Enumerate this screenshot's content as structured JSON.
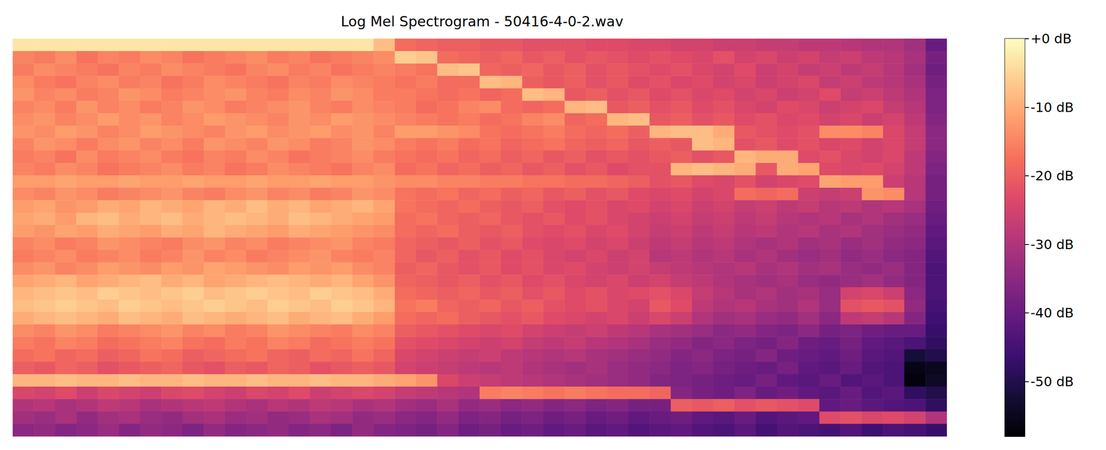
{
  "chart_data": {
    "type": "heatmap",
    "title": "Log Mel Spectrogram - 50416-4-0-2.wav",
    "tick_labels": false,
    "colorbar_range": [
      -58,
      0
    ],
    "colorbar_ticks": [
      {
        "value": 0,
        "label": "+0 dB"
      },
      {
        "value": -10,
        "label": "-10 dB"
      },
      {
        "value": -20,
        "label": "-20 dB"
      },
      {
        "value": -30,
        "label": "-30 dB"
      },
      {
        "value": -40,
        "label": "-40 dB"
      },
      {
        "value": -50,
        "label": "-50 dB"
      }
    ],
    "cells": [
      [
        -3,
        -3,
        -3,
        -3,
        -3,
        -3,
        -3,
        -3,
        -3,
        -3,
        -3,
        -3,
        -3,
        -3,
        -3,
        -3,
        -3,
        -8,
        -18,
        -19,
        -20,
        -20,
        -21,
        -21,
        -22,
        -22,
        -22,
        -23,
        -23,
        -24,
        -24,
        -25,
        -25,
        -26,
        -26,
        -27,
        -27,
        -28,
        -28,
        -29,
        -30,
        -30,
        -32,
        -40
      ],
      [
        -15,
        -16,
        -14,
        -17,
        -15,
        -16,
        -14,
        -15,
        -17,
        -16,
        -15,
        -14,
        -16,
        -15,
        -17,
        -16,
        -15,
        -14,
        -6,
        -7,
        -18,
        -19,
        -20,
        -19,
        -21,
        -20,
        -22,
        -21,
        -22,
        -23,
        -22,
        -23,
        -24,
        -22,
        -25,
        -24,
        -26,
        -25,
        -27,
        -26,
        -28,
        -29,
        -31,
        -38
      ],
      [
        -16,
        -14,
        -15,
        -16,
        -17,
        -15,
        -16,
        -14,
        -15,
        -16,
        -17,
        -15,
        -14,
        -16,
        -15,
        -17,
        -16,
        -15,
        -16,
        -17,
        -8,
        -7,
        -19,
        -20,
        -19,
        -21,
        -20,
        -22,
        -21,
        -22,
        -23,
        -22,
        -24,
        -25,
        -23,
        -26,
        -25,
        -27,
        -26,
        -28,
        -27,
        -29,
        -32,
        -39
      ],
      [
        -14,
        -16,
        -17,
        -15,
        -14,
        -16,
        -15,
        -17,
        -16,
        -14,
        -15,
        -16,
        -17,
        -15,
        -16,
        -14,
        -15,
        -16,
        -17,
        -16,
        -18,
        -18,
        -8,
        -9,
        -20,
        -21,
        -20,
        -22,
        -21,
        -23,
        -22,
        -24,
        -23,
        -25,
        -24,
        -26,
        -25,
        -24,
        -27,
        -26,
        -28,
        -29,
        -31,
        -38
      ],
      [
        -13,
        -15,
        -14,
        -16,
        -15,
        -13,
        -14,
        -16,
        -15,
        -14,
        -13,
        -15,
        -16,
        -14,
        -15,
        -13,
        -14,
        -16,
        -16,
        -17,
        -18,
        -17,
        -19,
        -18,
        -8,
        -9,
        -21,
        -20,
        -22,
        -21,
        -23,
        -22,
        -24,
        -23,
        -25,
        -24,
        -26,
        -25,
        -23,
        -27,
        -26,
        -28,
        -30,
        -37
      ],
      [
        -15,
        -14,
        -16,
        -13,
        -15,
        -14,
        -16,
        -15,
        -13,
        -14,
        -16,
        -15,
        -14,
        -13,
        -15,
        -16,
        -14,
        -15,
        -16,
        -18,
        -17,
        -15,
        -14,
        -18,
        -19,
        -18,
        -9,
        -8,
        -21,
        -20,
        -22,
        -21,
        -23,
        -22,
        -24,
        -25,
        -23,
        -24,
        -26,
        -25,
        -24,
        -27,
        -29,
        -37
      ],
      [
        -14,
        -13,
        -15,
        -14,
        -12,
        -14,
        -13,
        -15,
        -14,
        -12,
        -13,
        -14,
        -15,
        -13,
        -14,
        -12,
        -13,
        -14,
        -15,
        -16,
        -17,
        -16,
        -18,
        -17,
        -15,
        -14,
        -19,
        -18,
        -9,
        -8,
        -21,
        -20,
        -22,
        -21,
        -23,
        -22,
        -24,
        -23,
        -25,
        -24,
        -26,
        -25,
        -28,
        -36
      ],
      [
        -13,
        -14,
        -12,
        -13,
        -15,
        -14,
        -12,
        -13,
        -14,
        -15,
        -13,
        -12,
        -14,
        -13,
        -12,
        -14,
        -13,
        -15,
        -12,
        -12,
        -13,
        -14,
        -17,
        -18,
        -17,
        -16,
        -18,
        -19,
        -18,
        -20,
        -9,
        -8,
        -8,
        -10,
        -21,
        -22,
        -23,
        -22,
        -14,
        -14,
        -15,
        -24,
        -27,
        -35
      ],
      [
        -15,
        -13,
        -14,
        -16,
        -14,
        -13,
        -15,
        -14,
        -16,
        -13,
        -14,
        -15,
        -13,
        -14,
        -16,
        -15,
        -13,
        -14,
        -16,
        -17,
        -16,
        -18,
        -17,
        -19,
        -18,
        -17,
        -19,
        -20,
        -19,
        -21,
        -20,
        -21,
        -8,
        -9,
        -22,
        -21,
        -23,
        -22,
        -24,
        -23,
        -25,
        -24,
        -27,
        -35
      ],
      [
        -16,
        -15,
        -17,
        -14,
        -16,
        -15,
        -14,
        -16,
        -17,
        -15,
        -16,
        -14,
        -15,
        -17,
        -16,
        -15,
        -14,
        -16,
        -17,
        -18,
        -17,
        -19,
        -18,
        -20,
        -19,
        -21,
        -20,
        -22,
        -21,
        -22,
        -21,
        -20,
        -22,
        -21,
        -9,
        -10,
        -10,
        -23,
        -22,
        -24,
        -25,
        -24,
        -28,
        -36
      ],
      [
        -15,
        -16,
        -14,
        -15,
        -17,
        -16,
        -15,
        -14,
        -16,
        -15,
        -17,
        -16,
        -14,
        -15,
        -16,
        -17,
        -15,
        -14,
        -18,
        -17,
        -19,
        -18,
        -20,
        -19,
        -21,
        -20,
        -22,
        -21,
        -23,
        -22,
        -22,
        -9,
        -8,
        -9,
        -10,
        -21,
        -10,
        -11,
        -23,
        -24,
        -23,
        -25,
        -28,
        -37
      ],
      [
        -12,
        -12,
        -11,
        -12,
        -12,
        -11,
        -12,
        -12,
        -11,
        -12,
        -12,
        -11,
        -12,
        -12,
        -11,
        -12,
        -12,
        -13,
        -14,
        -14,
        -15,
        -15,
        -16,
        -16,
        -17,
        -17,
        -18,
        -18,
        -19,
        -20,
        -22,
        -21,
        -23,
        -24,
        -22,
        -25,
        -24,
        -23,
        -11,
        -12,
        -12,
        -26,
        -29,
        -38
      ],
      [
        -14,
        -15,
        -13,
        -14,
        -16,
        -15,
        -14,
        -13,
        -15,
        -16,
        -14,
        -13,
        -15,
        -14,
        -16,
        -15,
        -13,
        -14,
        -17,
        -18,
        -17,
        -19,
        -18,
        -20,
        -19,
        -21,
        -20,
        -22,
        -21,
        -23,
        -24,
        -23,
        -25,
        -24,
        -18,
        -19,
        -18,
        -26,
        -27,
        -26,
        -13,
        -14,
        -29,
        -38
      ],
      [
        -12,
        -11,
        -13,
        -12,
        -10,
        -11,
        -9,
        -10,
        -11,
        -9,
        -10,
        -8,
        -10,
        -9,
        -11,
        -10,
        -9,
        -11,
        -17,
        -18,
        -19,
        -18,
        -20,
        -21,
        -20,
        -22,
        -23,
        -22,
        -24,
        -23,
        -25,
        -24,
        -26,
        -25,
        -27,
        -26,
        -28,
        -27,
        -29,
        -28,
        -30,
        -29,
        -31,
        -39
      ],
      [
        -11,
        -10,
        -12,
        -9,
        -8,
        -10,
        -9,
        -8,
        -10,
        -9,
        -8,
        -9,
        -10,
        -8,
        -9,
        -10,
        -11,
        -12,
        -18,
        -17,
        -19,
        -20,
        -19,
        -21,
        -22,
        -21,
        -23,
        -22,
        -24,
        -25,
        -26,
        -25,
        -27,
        -26,
        -28,
        -27,
        -29,
        -30,
        -29,
        -31,
        -30,
        -32,
        -33,
        -40
      ],
      [
        -12,
        -13,
        -11,
        -12,
        -10,
        -11,
        -12,
        -10,
        -11,
        -9,
        -10,
        -11,
        -12,
        -10,
        -11,
        -12,
        -13,
        -14,
        -18,
        -19,
        -18,
        -20,
        -21,
        -20,
        -22,
        -23,
        -22,
        -24,
        -23,
        -25,
        -27,
        -26,
        -28,
        -27,
        -29,
        -28,
        -30,
        -29,
        -31,
        -30,
        -32,
        -33,
        -34,
        -41
      ],
      [
        -15,
        -14,
        -16,
        -15,
        -13,
        -14,
        -15,
        -16,
        -14,
        -13,
        -15,
        -14,
        -16,
        -15,
        -14,
        -13,
        -15,
        -16,
        -19,
        -20,
        -21,
        -20,
        -22,
        -21,
        -23,
        -24,
        -23,
        -25,
        -24,
        -26,
        -28,
        -27,
        -29,
        -28,
        -30,
        -31,
        -30,
        -32,
        -31,
        -33,
        -32,
        -34,
        -35,
        -42
      ],
      [
        -16,
        -15,
        -14,
        -16,
        -15,
        -14,
        -16,
        -15,
        -13,
        -15,
        -14,
        -16,
        -15,
        -14,
        -13,
        -15,
        -16,
        -15,
        -19,
        -21,
        -20,
        -22,
        -21,
        -23,
        -22,
        -24,
        -25,
        -24,
        -26,
        -25,
        -29,
        -28,
        -30,
        -29,
        -31,
        -30,
        -32,
        -33,
        -32,
        -34,
        -33,
        -35,
        -36,
        -43
      ],
      [
        -14,
        -13,
        -15,
        -14,
        -12,
        -13,
        -14,
        -12,
        -13,
        -11,
        -12,
        -13,
        -14,
        -12,
        -13,
        -12,
        -14,
        -15,
        -20,
        -19,
        -21,
        -22,
        -21,
        -23,
        -22,
        -24,
        -23,
        -25,
        -26,
        -25,
        -27,
        -28,
        -29,
        -30,
        -29,
        -31,
        -30,
        -32,
        -31,
        -33,
        -34,
        -33,
        -36,
        -44
      ],
      [
        -11,
        -10,
        -9,
        -11,
        -10,
        -9,
        -8,
        -10,
        -9,
        -11,
        -10,
        -9,
        -8,
        -9,
        -10,
        -9,
        -11,
        -13,
        -19,
        -20,
        -21,
        -20,
        -22,
        -21,
        -23,
        -22,
        -24,
        -25,
        -24,
        -26,
        -25,
        -27,
        -28,
        -30,
        -31,
        -32,
        -31,
        -33,
        -34,
        -33,
        -32,
        -34,
        -36,
        -44
      ],
      [
        -9,
        -8,
        -7,
        -8,
        -6,
        -7,
        -8,
        -7,
        -6,
        -8,
        -7,
        -6,
        -7,
        -8,
        -6,
        -7,
        -8,
        -10,
        -18,
        -19,
        -20,
        -19,
        -21,
        -20,
        -22,
        -21,
        -23,
        -22,
        -24,
        -23,
        -22,
        -24,
        -27,
        -29,
        -31,
        -30,
        -32,
        -31,
        -33,
        -25,
        -24,
        -26,
        -35,
        -44
      ],
      [
        -8,
        -7,
        -6,
        -7,
        -8,
        -6,
        -7,
        -8,
        -7,
        -6,
        -7,
        -8,
        -6,
        -7,
        -8,
        -6,
        -7,
        -9,
        -17,
        -16,
        -19,
        -20,
        -19,
        -21,
        -20,
        -22,
        -23,
        -22,
        -24,
        -25,
        -21,
        -23,
        -28,
        -30,
        -29,
        -31,
        -32,
        -30,
        -33,
        -22,
        -21,
        -22,
        -34,
        -45
      ],
      [
        -10,
        -9,
        -8,
        -9,
        -10,
        -8,
        -9,
        -10,
        -8,
        -9,
        -10,
        -9,
        -8,
        -10,
        -9,
        -8,
        -10,
        -12,
        -18,
        -19,
        -18,
        -20,
        -21,
        -22,
        -21,
        -23,
        -24,
        -25,
        -24,
        -26,
        -24,
        -26,
        -30,
        -32,
        -31,
        -33,
        -34,
        -32,
        -35,
        -28,
        -27,
        -29,
        -36,
        -46
      ],
      [
        -14,
        -15,
        -13,
        -14,
        -16,
        -15,
        -14,
        -13,
        -15,
        -14,
        -16,
        -15,
        -13,
        -14,
        -15,
        -16,
        -14,
        -15,
        -20,
        -21,
        -22,
        -23,
        -24,
        -23,
        -25,
        -26,
        -27,
        -26,
        -28,
        -29,
        -31,
        -32,
        -33,
        -35,
        -34,
        -36,
        -37,
        -35,
        -38,
        -37,
        -39,
        -40,
        -40,
        -47
      ],
      [
        -16,
        -17,
        -15,
        -16,
        -18,
        -17,
        -16,
        -15,
        -17,
        -18,
        -16,
        -17,
        -15,
        -16,
        -18,
        -17,
        -16,
        -17,
        -22,
        -23,
        -24,
        -25,
        -26,
        -25,
        -27,
        -28,
        -27,
        -29,
        -30,
        -31,
        -33,
        -34,
        -36,
        -35,
        -37,
        -38,
        -36,
        -39,
        -40,
        -38,
        -41,
        -42,
        -44,
        -48
      ],
      [
        -18,
        -17,
        -19,
        -18,
        -20,
        -19,
        -17,
        -18,
        -20,
        -19,
        -18,
        -17,
        -19,
        -20,
        -18,
        -19,
        -17,
        -19,
        -24,
        -25,
        -26,
        -27,
        -26,
        -28,
        -29,
        -30,
        -29,
        -31,
        -32,
        -33,
        -34,
        -36,
        -35,
        -37,
        -38,
        -36,
        -39,
        -40,
        -41,
        -39,
        -42,
        -43,
        -52,
        -50
      ],
      [
        -20,
        -21,
        -19,
        -20,
        -22,
        -21,
        -20,
        -19,
        -21,
        -22,
        -20,
        -21,
        -19,
        -20,
        -22,
        -21,
        -20,
        -21,
        -25,
        -26,
        -27,
        -28,
        -29,
        -28,
        -30,
        -31,
        -32,
        -31,
        -33,
        -34,
        -35,
        -37,
        -36,
        -38,
        -39,
        -40,
        -38,
        -41,
        -42,
        -40,
        -43,
        -44,
        -56,
        -55
      ],
      [
        -9,
        -9,
        -8,
        -9,
        -9,
        -8,
        -9,
        -9,
        -8,
        -9,
        -9,
        -8,
        -9,
        -9,
        -8,
        -9,
        -9,
        -10,
        -11,
        -13,
        -24,
        -26,
        -27,
        -28,
        -29,
        -30,
        -31,
        -32,
        -33,
        -34,
        -36,
        -37,
        -38,
        -39,
        -40,
        -38,
        -41,
        -42,
        -40,
        -43,
        -42,
        -44,
        -57,
        -54
      ],
      [
        -24,
        -25,
        -23,
        -26,
        -24,
        -25,
        -26,
        -24,
        -23,
        -25,
        -26,
        -24,
        -25,
        -23,
        -26,
        -25,
        -24,
        -25,
        -27,
        -28,
        -29,
        -30,
        -16,
        -15,
        -16,
        -17,
        -16,
        -17,
        -18,
        -18,
        -19,
        -36,
        -38,
        -39,
        -37,
        -40,
        -39,
        -41,
        -42,
        -40,
        -43,
        -42,
        -48,
        -50
      ],
      [
        -30,
        -29,
        -31,
        -30,
        -28,
        -29,
        -31,
        -30,
        -29,
        -28,
        -30,
        -31,
        -29,
        -30,
        -28,
        -29,
        -31,
        -30,
        -32,
        -33,
        -31,
        -34,
        -33,
        -35,
        -34,
        -36,
        -35,
        -37,
        -36,
        -38,
        -38,
        -20,
        -21,
        -20,
        -22,
        -21,
        -22,
        -23,
        -41,
        -40,
        -42,
        -43,
        -44,
        -48
      ],
      [
        -32,
        -33,
        -31,
        -34,
        -32,
        -31,
        -33,
        -34,
        -32,
        -31,
        -33,
        -32,
        -34,
        -33,
        -31,
        -32,
        -34,
        -33,
        -35,
        -36,
        -34,
        -37,
        -36,
        -38,
        -37,
        -39,
        -38,
        -40,
        -39,
        -41,
        -40,
        -39,
        -41,
        -42,
        -40,
        -43,
        -42,
        -41,
        -23,
        -22,
        -24,
        -23,
        -25,
        -30
      ],
      [
        -35,
        -34,
        -36,
        -35,
        -33,
        -36,
        -34,
        -35,
        -37,
        -34,
        -36,
        -35,
        -34,
        -36,
        -35,
        -37,
        -34,
        -36,
        -37,
        -38,
        -36,
        -39,
        -38,
        -40,
        -39,
        -41,
        -40,
        -42,
        -41,
        -43,
        -42,
        -41,
        -43,
        -44,
        -42,
        -45,
        -43,
        -44,
        -45,
        -43,
        -46,
        -44,
        -45,
        -47
      ]
    ]
  }
}
